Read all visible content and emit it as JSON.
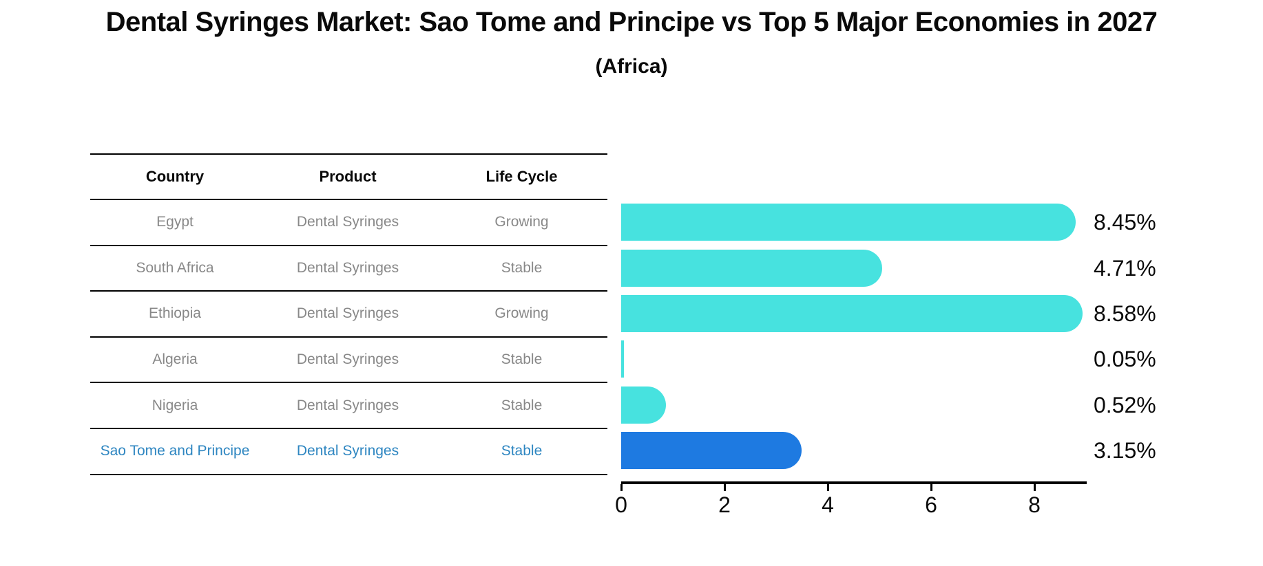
{
  "title": "Dental Syringes Market: Sao Tome and Principe vs Top 5 Major Economies in 2027",
  "subtitle": "(Africa)",
  "table": {
    "headers": [
      "Country",
      "Product",
      "Life Cycle"
    ],
    "rows": [
      {
        "country": "Egypt",
        "product": "Dental Syringes",
        "life_cycle": "Growing"
      },
      {
        "country": "South Africa",
        "product": "Dental Syringes",
        "life_cycle": "Stable"
      },
      {
        "country": "Ethiopia",
        "product": "Dental Syringes",
        "life_cycle": "Growing"
      },
      {
        "country": "Algeria",
        "product": "Dental Syringes",
        "life_cycle": "Stable"
      },
      {
        "country": "Nigeria",
        "product": "Dental Syringes",
        "life_cycle": "Stable"
      },
      {
        "country": "Sao Tome and Principe",
        "product": "Dental Syringes",
        "life_cycle": "Stable"
      }
    ],
    "highlight_row_index": 5
  },
  "chart_data": {
    "type": "bar",
    "orientation": "horizontal",
    "title": "Dental Syringes Market: Sao Tome and Principe vs Top 5 Major Economies in 2027",
    "subtitle": "(Africa)",
    "categories": [
      "Egypt",
      "South Africa",
      "Ethiopia",
      "Algeria",
      "Nigeria",
      "Sao Tome and Principe"
    ],
    "values": [
      8.45,
      4.71,
      8.58,
      0.05,
      0.52,
      3.15
    ],
    "value_labels": [
      "8.45%",
      "4.71%",
      "8.58%",
      "0.05%",
      "0.52%",
      "3.15%"
    ],
    "x_ticks": [
      "0",
      "2",
      "4",
      "6",
      "8"
    ],
    "xlim": [
      0,
      9
    ],
    "grid": false,
    "legend": false,
    "bar_color": "#47E2DF",
    "highlight_bar_color": "#1E7AE1",
    "highlight_index": 5
  },
  "colors": {
    "title_text": "#0a0a0a",
    "table_text": "#888888",
    "highlight_text": "#2e86c1",
    "axis": "#000000"
  }
}
